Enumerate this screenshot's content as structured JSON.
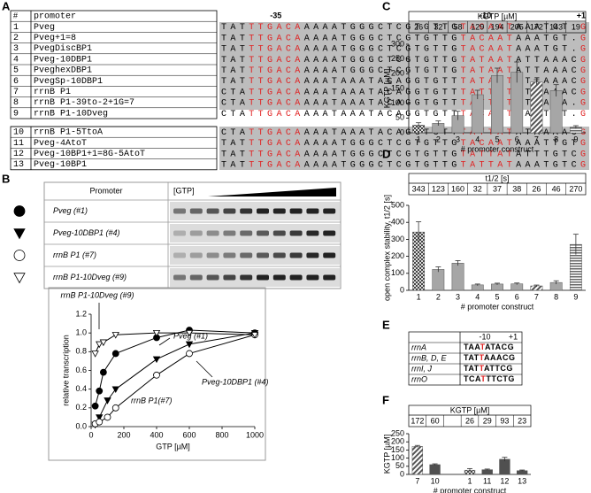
{
  "panel_labels": [
    "A",
    "B",
    "C",
    "D",
    "E",
    "F"
  ],
  "panel_a": {
    "header": [
      "#",
      "promoter"
    ],
    "markers": [
      "-35",
      "-10",
      "+1"
    ],
    "rows": [
      {
        "num": "1",
        "name": "Pveg",
        "seq": [
          "TAT",
          "TTGACA",
          "AAAATGGGCTCGTGTTG",
          "TACAAT",
          "AAATGT.",
          "G"
        ]
      },
      {
        "num": "2",
        "name": "Pveg+1=8",
        "seq": [
          "TAT",
          "TTGACA",
          "AAAATGGGCTCGTGTTG",
          "TACAAT",
          "AAATGT.",
          "G"
        ]
      },
      {
        "num": "3",
        "name": "PvegDiscBP1",
        "seq": [
          "TAT",
          "TTGACA",
          "AAAATGGGCTCGTGTTG",
          "TACAAT",
          "AAATGT.",
          "G"
        ]
      },
      {
        "num": "4",
        "name": "Pveg-10DBP1",
        "seq": [
          "TAT",
          "TTGACA",
          "AAAATGGGCTCGTGTTG",
          "TATAAT",
          "ATTAAAC",
          "G"
        ]
      },
      {
        "num": "5",
        "name": "PveghexDBP1",
        "seq": [
          "TAT",
          "TTGACA",
          "AAAATGGGCTCGTGTTG",
          "TATAAT",
          "ATTAAAC",
          "G"
        ]
      },
      {
        "num": "6",
        "name": "PvegSp-10DBP1",
        "seq": [
          "TAT",
          "TTGACA",
          "AAATAAATACAGGTGTT",
          "TATAAT",
          "ATTAAAC",
          "G"
        ]
      },
      {
        "num": "7",
        "name": "rrnB P1",
        "seq": [
          "CTA",
          "TTGACA",
          "AAATAAATACAGGTGTT",
          "TATTAT",
          "ATTAAAC",
          "G"
        ]
      },
      {
        "num": "8",
        "name": "rrnB P1-39to-2+1G=7",
        "seq": [
          "CTA",
          "TTGACA",
          "AAATAAATACAGGTGTT",
          "TATTAT",
          "ATTAAA.",
          "G"
        ]
      },
      {
        "num": "9",
        "name": "rrnB P1-10Dveg",
        "seq": [
          "CTA",
          "TTGACA",
          "AAATAAATACAGGTGTT",
          "TACAAT",
          "AAATGT.",
          "G"
        ]
      }
    ],
    "rows2": [
      {
        "num": "10",
        "name": "rrnB P1-5TtoA",
        "seq": [
          "CTA",
          "TTGACA",
          "AAATAAATACAGGTGTT",
          "TATTAT",
          "ATAAAAC",
          "G"
        ]
      },
      {
        "num": "11",
        "name": "Pveg-4AtoT",
        "seq": [
          "TAT",
          "TTGACA",
          "AAAATGGGCTCGTGTTG",
          "TACAAT",
          "AAATTGT",
          "G"
        ]
      },
      {
        "num": "12",
        "name": "Pveg-10BP1+1=8G-5AtoT",
        "seq": [
          "TAT",
          "TTGACA",
          "AAAATGGGCTCGTGTTG",
          "TATTAT",
          "ATTTGTC",
          "G"
        ]
      },
      {
        "num": "13",
        "name": "Pveg-10BP1",
        "seq": [
          "TAT",
          "TTGACA",
          "AAAATGGGCTCGTGTTG",
          "TATTAT",
          "AAATGTC",
          "G"
        ]
      }
    ]
  },
  "panel_b": {
    "header": [
      "Promoter",
      "[GTP]"
    ],
    "rows": [
      "Pveg (#1)",
      "Pveg-10DBP1 (#4)",
      "rrnB P1 (#7)",
      "rrnB P1-10Dveg (#9)"
    ]
  },
  "panel_e": {
    "header": [
      "-10",
      "+1"
    ],
    "rows": [
      {
        "name": "rrnA",
        "seq": [
          "TAA",
          "T",
          "ATACG"
        ]
      },
      {
        "name": "rrnB, D, E",
        "seq": [
          "TAT",
          "T",
          "AAACG"
        ]
      },
      {
        "name": "rrnI, J",
        "seq": [
          "TAT",
          "T",
          "ATTCG"
        ]
      },
      {
        "name": "rrnO",
        "seq": [
          "TCA",
          "T",
          "TTCTG"
        ]
      }
    ]
  },
  "chart_data": [
    {
      "type": "line",
      "x_label": "GTP [µM]",
      "y_label": "relative transcription",
      "xlim": [
        0,
        1000
      ],
      "xticks": [
        0,
        200,
        400,
        600,
        800,
        1000
      ],
      "ylim": [
        0,
        1.2
      ],
      "yticks": [
        {
          "value": 0,
          "label": "0.0"
        },
        {
          "value": 0.2,
          "label": "0.2"
        },
        {
          "value": 0.4,
          "label": "0.4"
        },
        {
          "value": 0.6,
          "label": "0.6"
        },
        {
          "value": 0.8,
          "label": "0.8"
        },
        {
          "value": 1,
          "label": "1.0"
        },
        {
          "value": 1.2,
          "label": "1.2"
        }
      ],
      "annotations": [
        "rrnB P1-10Dveg (#9)",
        "Pveg (#1)",
        "Pveg-10DBP1 (#4)",
        "rrnB P1(#7)"
      ],
      "series": [
        {
          "name": "Pveg (#1)",
          "marker": "filled-circle",
          "color": "#000000",
          "x": [
            25,
            50,
            75,
            150,
            400,
            600,
            1000
          ],
          "values": [
            0.22,
            0.38,
            0.58,
            0.78,
            0.95,
            1.03,
            1.0
          ]
        },
        {
          "name": "Pveg-10DBP1 (#4)",
          "marker": "filled-triangle",
          "color": "#000000",
          "x": [
            25,
            50,
            100,
            150,
            400,
            600,
            1000
          ],
          "values": [
            0.02,
            0.1,
            0.28,
            0.4,
            0.72,
            0.88,
            1.0
          ]
        },
        {
          "name": "rrnB P1 (#7)",
          "marker": "open-circle",
          "color": "#000000",
          "x": [
            25,
            50,
            100,
            150,
            400,
            600,
            1000
          ],
          "values": [
            0.03,
            0.05,
            0.1,
            0.2,
            0.55,
            0.78,
            0.98
          ]
        },
        {
          "name": "rrnB P1-10Dveg (#9)",
          "marker": "open-triangle",
          "color": "#000000",
          "x": [
            25,
            50,
            75,
            150,
            400,
            600,
            1000
          ],
          "values": [
            0.78,
            0.88,
            0.9,
            0.98,
            1.0,
            1.0,
            0.98
          ]
        }
      ]
    },
    {
      "type": "bar",
      "table_header": "KGTP [µM]",
      "y_label": "KGTP [µM]",
      "x_label": "# promoter construct",
      "categories": [
        "1",
        "2",
        "3",
        "4",
        "5",
        "6",
        "7",
        "8",
        "9"
      ],
      "values": [
        26,
        32,
        58,
        129,
        194,
        205,
        172,
        143,
        19
      ],
      "errors": [
        8,
        8,
        15,
        15,
        25,
        35,
        8,
        20,
        5
      ],
      "patterns": [
        "checker",
        "solid",
        "solid",
        "solid",
        "solid",
        "solid",
        "hatch",
        "solid",
        "stripes"
      ],
      "color": "#a6a6a6",
      "ylim": [
        0,
        300
      ],
      "yticks": [
        0,
        50,
        100,
        150,
        200,
        250,
        300
      ]
    },
    {
      "type": "bar",
      "table_header": "t1/2 [s]",
      "y_label": "open complex stability, t1/2 [s]",
      "x_label": "# promoter construct",
      "categories": [
        "1",
        "2",
        "3",
        "4",
        "5",
        "6",
        "7",
        "8",
        "9"
      ],
      "values": [
        343,
        123,
        160,
        32,
        37,
        38,
        26,
        46,
        270
      ],
      "errors": [
        60,
        15,
        15,
        5,
        5,
        5,
        5,
        10,
        60
      ],
      "patterns": [
        "checker",
        "solid",
        "solid",
        "solid",
        "solid",
        "solid",
        "hatch",
        "solid",
        "stripes"
      ],
      "color": "#a6a6a6",
      "ylim": [
        0,
        500
      ],
      "yticks": [
        0,
        100,
        200,
        300,
        400,
        500
      ]
    },
    {
      "type": "bar",
      "table_header": "KGTP [µM]",
      "y_label": "KGTP [µM]",
      "x_label": "# promoter construct",
      "categories": [
        "7",
        "10",
        null,
        "1",
        "11",
        "12",
        "13"
      ],
      "values": [
        172,
        60,
        null,
        26,
        29,
        93,
        23
      ],
      "errors": [
        6,
        5,
        null,
        10,
        4,
        12,
        4
      ],
      "patterns": [
        "hatch",
        "solid",
        "solid",
        "checker",
        "solid",
        "solid",
        "solid"
      ],
      "color": "#505050",
      "ylim": [
        0,
        250
      ],
      "yticks": [
        0,
        50,
        100,
        150,
        200,
        250
      ]
    }
  ]
}
